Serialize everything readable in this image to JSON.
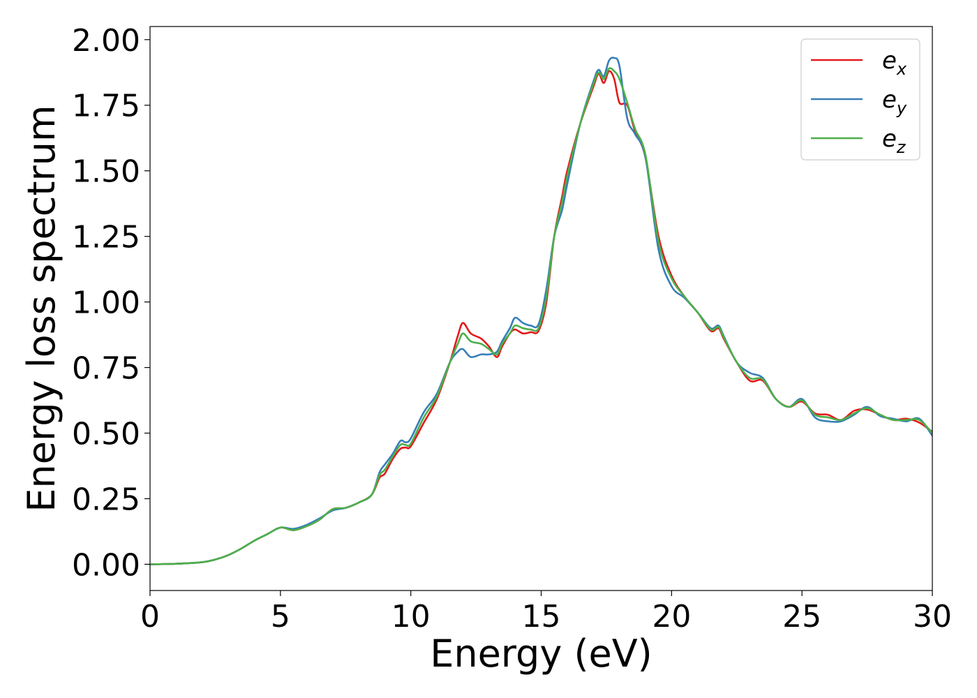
{
  "chart_data": {
    "type": "line",
    "xlabel": "Energy (eV)",
    "ylabel": "Energy loss spectrum",
    "xlim": [
      0,
      30
    ],
    "ylim": [
      -0.1,
      2.05
    ],
    "xticks": [
      0,
      5,
      10,
      15,
      20,
      25,
      30
    ],
    "xtick_labels": [
      "0",
      "5",
      "10",
      "15",
      "20",
      "25",
      "30"
    ],
    "yticks": [
      0,
      0.25,
      0.5,
      0.75,
      1.0,
      1.25,
      1.5,
      1.75,
      2.0
    ],
    "ytick_labels": [
      "0.00",
      "0.25",
      "0.50",
      "0.75",
      "1.00",
      "1.25",
      "1.50",
      "1.75",
      "2.00"
    ],
    "grid": false,
    "legend_position": "top-right",
    "series": [
      {
        "name": "e",
        "subscript": "x",
        "color": "#e41a1c",
        "x": [
          0,
          1,
          2,
          2.5,
          3,
          3.5,
          4,
          4.5,
          5,
          5.5,
          6,
          6.5,
          7,
          7.5,
          8,
          8.5,
          8.8,
          9,
          9.3,
          9.6,
          9.8,
          10,
          10.5,
          11,
          11.5,
          11.8,
          12,
          12.3,
          12.7,
          13,
          13.3,
          13.5,
          13.8,
          14,
          14.3,
          14.6,
          14.9,
          15.2,
          15.5,
          15.8,
          16,
          16.5,
          17,
          17.2,
          17.4,
          17.6,
          17.8,
          18,
          18.3,
          18.6,
          19,
          19.5,
          20,
          20.5,
          21,
          21.5,
          21.8,
          22,
          22.5,
          23,
          23.5,
          24,
          24.5,
          25,
          25.5,
          26,
          26.5,
          27,
          27.5,
          28,
          28.5,
          29,
          29.5,
          30
        ],
        "y": [
          0,
          0.002,
          0.008,
          0.018,
          0.035,
          0.06,
          0.09,
          0.115,
          0.14,
          0.13,
          0.145,
          0.17,
          0.21,
          0.215,
          0.235,
          0.265,
          0.33,
          0.345,
          0.4,
          0.44,
          0.445,
          0.45,
          0.54,
          0.63,
          0.77,
          0.87,
          0.92,
          0.88,
          0.86,
          0.83,
          0.79,
          0.83,
          0.88,
          0.895,
          0.88,
          0.885,
          0.89,
          1.0,
          1.25,
          1.4,
          1.5,
          1.68,
          1.82,
          1.87,
          1.835,
          1.88,
          1.85,
          1.76,
          1.75,
          1.65,
          1.55,
          1.25,
          1.1,
          1.02,
          0.96,
          0.89,
          0.9,
          0.86,
          0.77,
          0.7,
          0.7,
          0.63,
          0.6,
          0.62,
          0.575,
          0.57,
          0.55,
          0.585,
          0.59,
          0.57,
          0.55,
          0.555,
          0.54,
          0.505
        ]
      },
      {
        "name": "e",
        "subscript": "y",
        "color": "#377eb8",
        "x": [
          0,
          1,
          2,
          2.5,
          3,
          3.5,
          4,
          4.5,
          5,
          5.5,
          6,
          6.5,
          7,
          7.5,
          8,
          8.5,
          8.8,
          9,
          9.3,
          9.6,
          9.8,
          10,
          10.5,
          11,
          11.5,
          11.8,
          12,
          12.3,
          12.7,
          13,
          13.3,
          13.5,
          13.8,
          14,
          14.3,
          14.6,
          14.9,
          15.2,
          15.5,
          15.8,
          16,
          16.5,
          17,
          17.2,
          17.4,
          17.6,
          17.8,
          18,
          18.3,
          18.6,
          19,
          19.5,
          20,
          20.5,
          21,
          21.5,
          21.8,
          22,
          22.5,
          23,
          23.5,
          24,
          24.5,
          25,
          25.5,
          26,
          26.5,
          27,
          27.5,
          28,
          28.5,
          29,
          29.5,
          30
        ],
        "y": [
          0,
          0.002,
          0.008,
          0.018,
          0.035,
          0.06,
          0.09,
          0.115,
          0.14,
          0.135,
          0.15,
          0.175,
          0.205,
          0.215,
          0.235,
          0.265,
          0.35,
          0.38,
          0.42,
          0.47,
          0.465,
          0.48,
          0.58,
          0.65,
          0.77,
          0.81,
          0.82,
          0.79,
          0.8,
          0.8,
          0.81,
          0.85,
          0.9,
          0.94,
          0.92,
          0.91,
          0.915,
          1.05,
          1.25,
          1.35,
          1.45,
          1.68,
          1.84,
          1.885,
          1.86,
          1.92,
          1.93,
          1.9,
          1.7,
          1.64,
          1.55,
          1.2,
          1.06,
          1.015,
          0.96,
          0.9,
          0.91,
          0.87,
          0.77,
          0.73,
          0.71,
          0.63,
          0.6,
          0.63,
          0.56,
          0.545,
          0.545,
          0.57,
          0.6,
          0.565,
          0.555,
          0.545,
          0.555,
          0.49
        ]
      },
      {
        "name": "e",
        "subscript": "z",
        "color": "#4daf4a",
        "x": [
          0,
          1,
          2,
          2.5,
          3,
          3.5,
          4,
          4.5,
          5,
          5.5,
          6,
          6.5,
          7,
          7.5,
          8,
          8.5,
          8.8,
          9,
          9.3,
          9.6,
          9.8,
          10,
          10.5,
          11,
          11.5,
          11.8,
          12,
          12.3,
          12.7,
          13,
          13.3,
          13.5,
          13.8,
          14,
          14.3,
          14.6,
          14.9,
          15.2,
          15.5,
          15.8,
          16,
          16.5,
          17,
          17.2,
          17.4,
          17.6,
          17.8,
          18,
          18.3,
          18.6,
          19,
          19.5,
          20,
          20.5,
          21,
          21.5,
          21.8,
          22,
          22.5,
          23,
          23.5,
          24,
          24.5,
          25,
          25.5,
          26,
          26.5,
          27,
          27.5,
          28,
          28.5,
          29,
          29.5,
          30
        ],
        "y": [
          0,
          0.002,
          0.008,
          0.018,
          0.035,
          0.06,
          0.09,
          0.115,
          0.14,
          0.13,
          0.145,
          0.17,
          0.21,
          0.215,
          0.235,
          0.265,
          0.34,
          0.36,
          0.41,
          0.455,
          0.455,
          0.46,
          0.56,
          0.64,
          0.77,
          0.84,
          0.88,
          0.85,
          0.84,
          0.82,
          0.8,
          0.84,
          0.88,
          0.91,
          0.9,
          0.895,
          0.9,
          1.02,
          1.25,
          1.38,
          1.48,
          1.68,
          1.83,
          1.875,
          1.85,
          1.89,
          1.88,
          1.85,
          1.76,
          1.66,
          1.56,
          1.23,
          1.09,
          1.02,
          0.96,
          0.895,
          0.905,
          0.865,
          0.77,
          0.71,
          0.705,
          0.63,
          0.6,
          0.625,
          0.57,
          0.56,
          0.55,
          0.575,
          0.595,
          0.57,
          0.55,
          0.55,
          0.55,
          0.5
        ]
      }
    ]
  }
}
